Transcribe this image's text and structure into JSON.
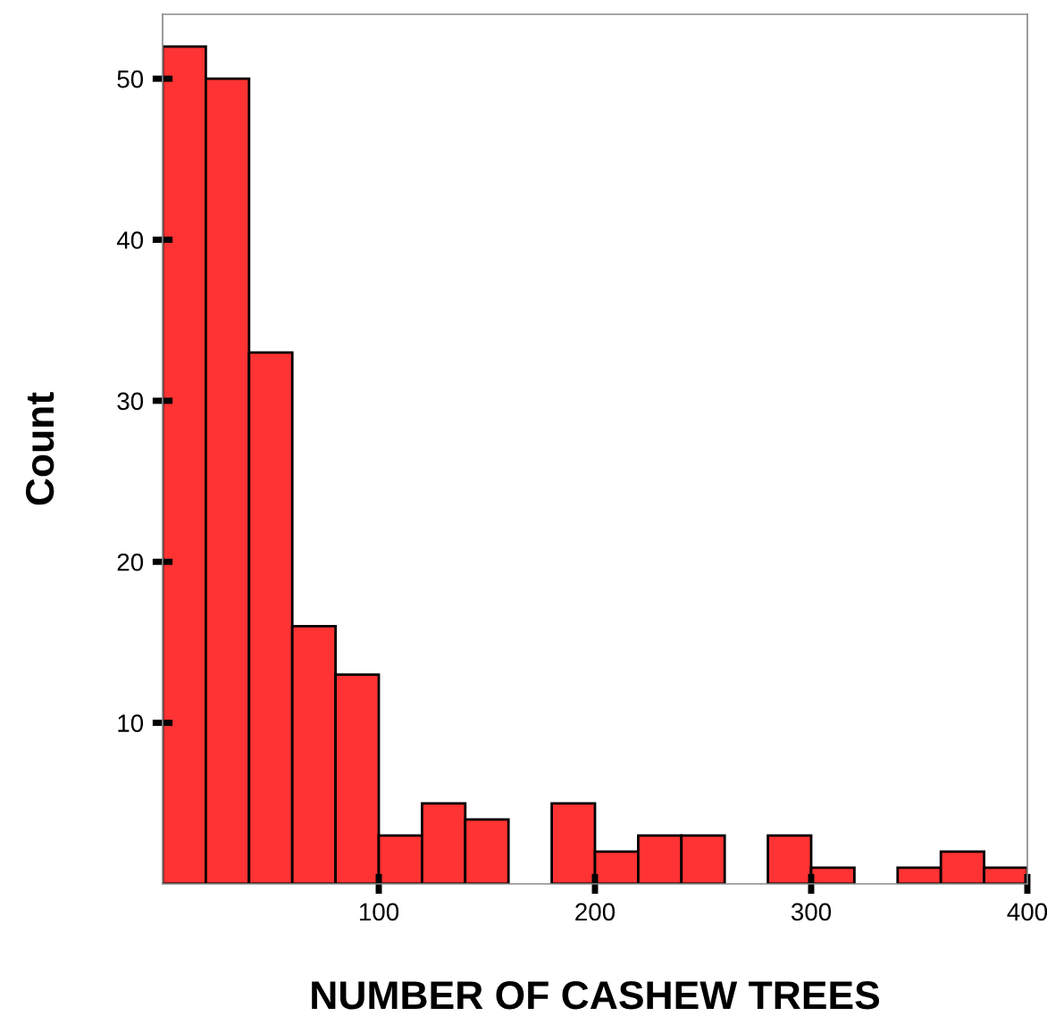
{
  "chart_data": {
    "type": "histogram",
    "xlabel": "NUMBER OF CASHEW TREES",
    "ylabel": "Count",
    "bins": [
      0,
      20,
      40,
      60,
      80,
      100,
      120,
      140,
      160,
      180,
      200,
      220,
      240,
      260,
      280,
      300,
      320,
      340,
      360,
      380,
      400
    ],
    "values": [
      52,
      50,
      33,
      16,
      13,
      3,
      5,
      4,
      0,
      5,
      2,
      3,
      3,
      0,
      3,
      1,
      0,
      1,
      2,
      1
    ],
    "color": "#ff3333",
    "xlim": [
      0,
      400
    ],
    "ylim": [
      0,
      54
    ],
    "xticks": [
      100,
      200,
      300,
      400
    ],
    "yticks": [
      10,
      20,
      30,
      40,
      50
    ],
    "grid": false
  }
}
